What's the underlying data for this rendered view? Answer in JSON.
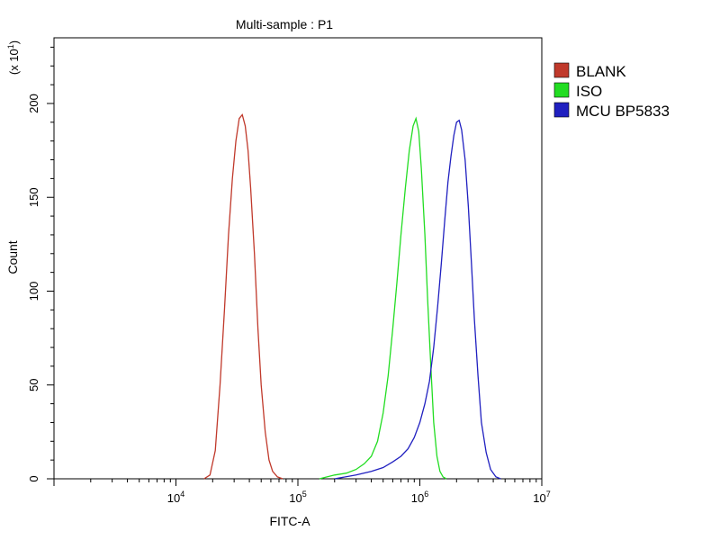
{
  "chart_data": {
    "type": "line",
    "title": "Multi-sample : P1",
    "xlabel": "FITC-A",
    "ylabel": "Count",
    "y_multiplier": {
      "base": "(x 10",
      "exp": "1",
      "close": ")"
    },
    "x_scale": "log",
    "xlim": [
      1000,
      10000000
    ],
    "ylim": [
      0,
      235
    ],
    "x_ticks": [
      {
        "value": 10000,
        "base": "10",
        "exp": "4"
      },
      {
        "value": 100000,
        "base": "10",
        "exp": "5"
      },
      {
        "value": 1000000,
        "base": "10",
        "exp": "6"
      },
      {
        "value": 10000000,
        "base": "10",
        "exp": "7"
      }
    ],
    "y_ticks": [
      {
        "value": 0,
        "label": "0"
      },
      {
        "value": 50,
        "label": "50"
      },
      {
        "value": 100,
        "label": "100"
      },
      {
        "value": 150,
        "label": "150"
      },
      {
        "value": 200,
        "label": "200"
      }
    ],
    "grid": false,
    "legend_position": "top-right",
    "series": [
      {
        "name": "BLANK",
        "color": "#c0392b",
        "points": [
          [
            17000,
            0
          ],
          [
            19000,
            2
          ],
          [
            21000,
            15
          ],
          [
            23000,
            50
          ],
          [
            25000,
            90
          ],
          [
            27000,
            130
          ],
          [
            29000,
            160
          ],
          [
            31000,
            180
          ],
          [
            33000,
            192
          ],
          [
            35000,
            194
          ],
          [
            37000,
            188
          ],
          [
            39000,
            175
          ],
          [
            41000,
            155
          ],
          [
            44000,
            120
          ],
          [
            47000,
            80
          ],
          [
            50000,
            50
          ],
          [
            54000,
            25
          ],
          [
            58000,
            10
          ],
          [
            62000,
            4
          ],
          [
            68000,
            1
          ],
          [
            75000,
            0
          ]
        ]
      },
      {
        "name": "ISO",
        "color": "#22dd22",
        "points": [
          [
            150000,
            0
          ],
          [
            200000,
            2
          ],
          [
            250000,
            3
          ],
          [
            300000,
            5
          ],
          [
            350000,
            8
          ],
          [
            400000,
            12
          ],
          [
            450000,
            20
          ],
          [
            500000,
            35
          ],
          [
            550000,
            55
          ],
          [
            600000,
            80
          ],
          [
            650000,
            105
          ],
          [
            700000,
            130
          ],
          [
            760000,
            155
          ],
          [
            820000,
            175
          ],
          [
            880000,
            188
          ],
          [
            930000,
            192
          ],
          [
            980000,
            185
          ],
          [
            1030000,
            165
          ],
          [
            1100000,
            130
          ],
          [
            1160000,
            95
          ],
          [
            1230000,
            60
          ],
          [
            1300000,
            30
          ],
          [
            1380000,
            12
          ],
          [
            1460000,
            4
          ],
          [
            1550000,
            1
          ],
          [
            1650000,
            0
          ]
        ]
      },
      {
        "name": "MCU BP5833",
        "color": "#2020c0",
        "points": [
          [
            200000,
            0
          ],
          [
            300000,
            2
          ],
          [
            400000,
            4
          ],
          [
            500000,
            6
          ],
          [
            600000,
            9
          ],
          [
            700000,
            12
          ],
          [
            800000,
            16
          ],
          [
            900000,
            22
          ],
          [
            1000000,
            30
          ],
          [
            1100000,
            40
          ],
          [
            1200000,
            52
          ],
          [
            1300000,
            70
          ],
          [
            1400000,
            92
          ],
          [
            1500000,
            115
          ],
          [
            1600000,
            138
          ],
          [
            1700000,
            158
          ],
          [
            1800000,
            172
          ],
          [
            1900000,
            183
          ],
          [
            2000000,
            190
          ],
          [
            2100000,
            191
          ],
          [
            2200000,
            186
          ],
          [
            2350000,
            170
          ],
          [
            2500000,
            145
          ],
          [
            2650000,
            115
          ],
          [
            2800000,
            85
          ],
          [
            3000000,
            55
          ],
          [
            3200000,
            30
          ],
          [
            3500000,
            14
          ],
          [
            3800000,
            5
          ],
          [
            4200000,
            1
          ],
          [
            4600000,
            0
          ]
        ]
      }
    ]
  }
}
